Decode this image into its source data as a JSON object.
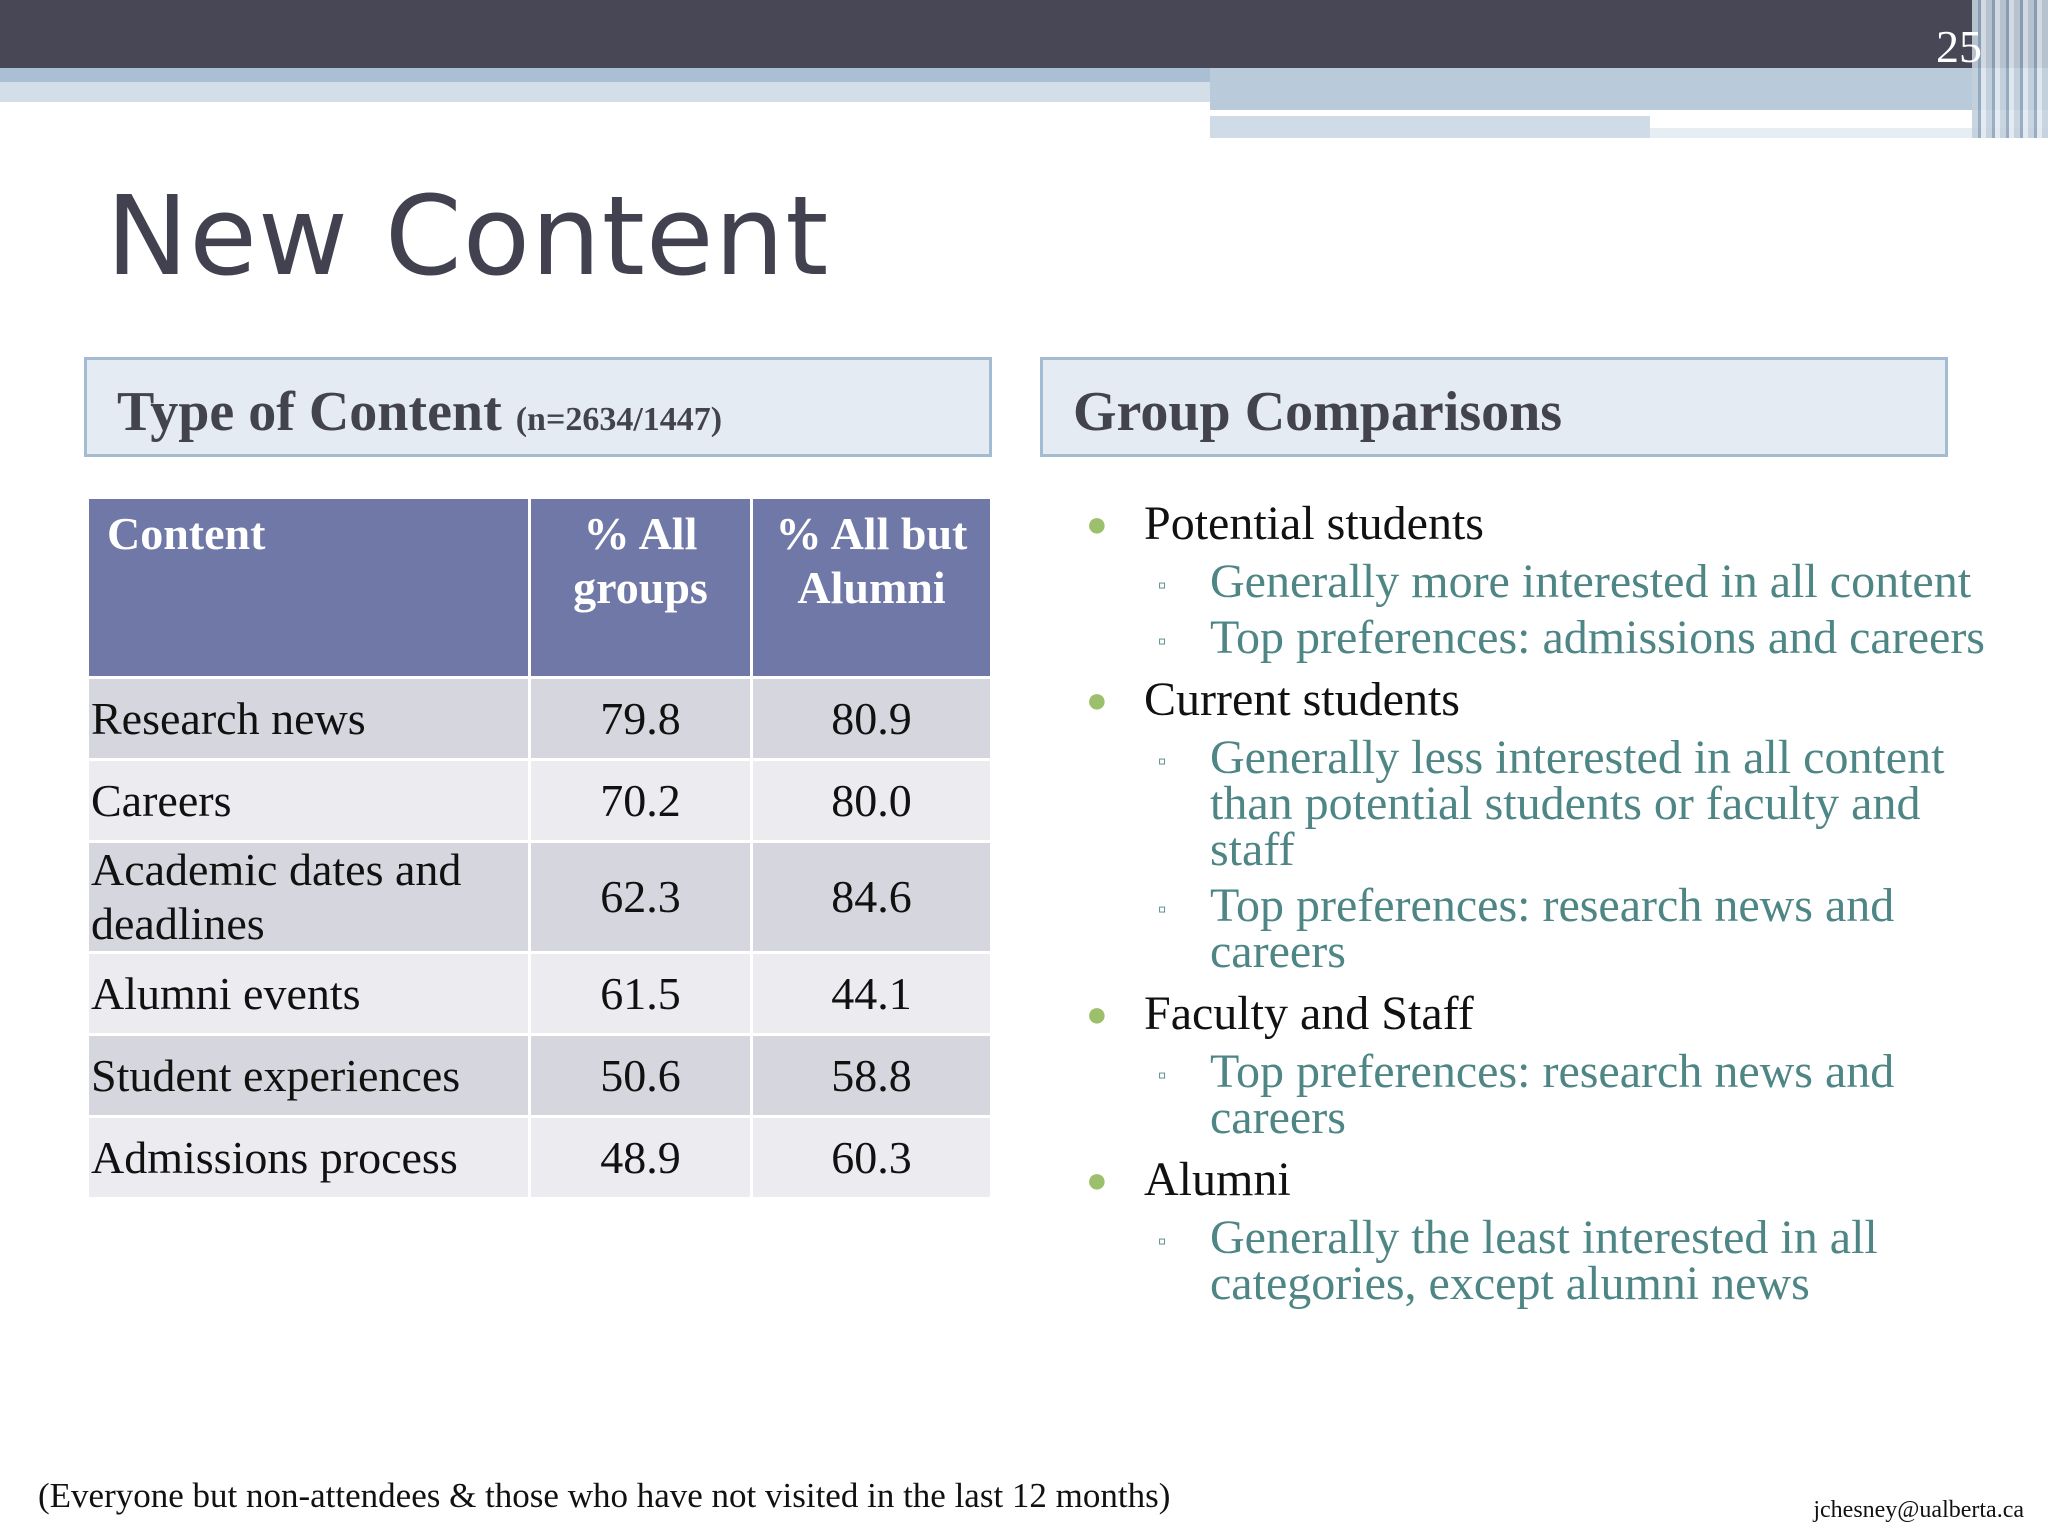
{
  "slide": {
    "page_number": "25",
    "title": "New Content",
    "footnote": "(Everyone but non-attendees & those who have not visited in the last 12 months)",
    "email": "jchesney@ualberta.ca"
  },
  "left_header": {
    "title": "Type of Content",
    "subtitle": "(n=2634/1447)"
  },
  "right_header": {
    "title": "Group Comparisons"
  },
  "table": {
    "headers": [
      "Content",
      "% All groups",
      "% All but Alumni"
    ],
    "rows": [
      [
        "Research news",
        "79.8",
        "80.9"
      ],
      [
        "Careers",
        "70.2",
        "80.0"
      ],
      [
        "Academic dates and deadlines",
        "62.3",
        "84.6"
      ],
      [
        "Alumni events",
        "61.5",
        "44.1"
      ],
      [
        "Student experiences",
        "50.6",
        "58.8"
      ],
      [
        "Admissions process",
        "48.9",
        "60.3"
      ]
    ]
  },
  "groups": [
    {
      "label": "Potential students",
      "items": [
        "Generally more interested in all content",
        "Top preferences: admissions and careers"
      ]
    },
    {
      "label": "Current students",
      "items": [
        "Generally less interested in all content than potential students or faculty and staff",
        "Top preferences: research news and careers"
      ]
    },
    {
      "label": "Faculty and Staff",
      "items": [
        "Top preferences: research news and careers"
      ]
    },
    {
      "label": "Alumni",
      "items": [
        "Generally the least interested in all categories, except alumni news"
      ]
    }
  ],
  "colors": {
    "accent": "#6f78a6",
    "title": "#414150",
    "sub_bullet_text": "#4e8585",
    "bullet_dot": "#9bbf6a"
  },
  "icons": {
    "bullet": "round-bullet-icon",
    "sub_bullet": "square-bullet-icon"
  }
}
